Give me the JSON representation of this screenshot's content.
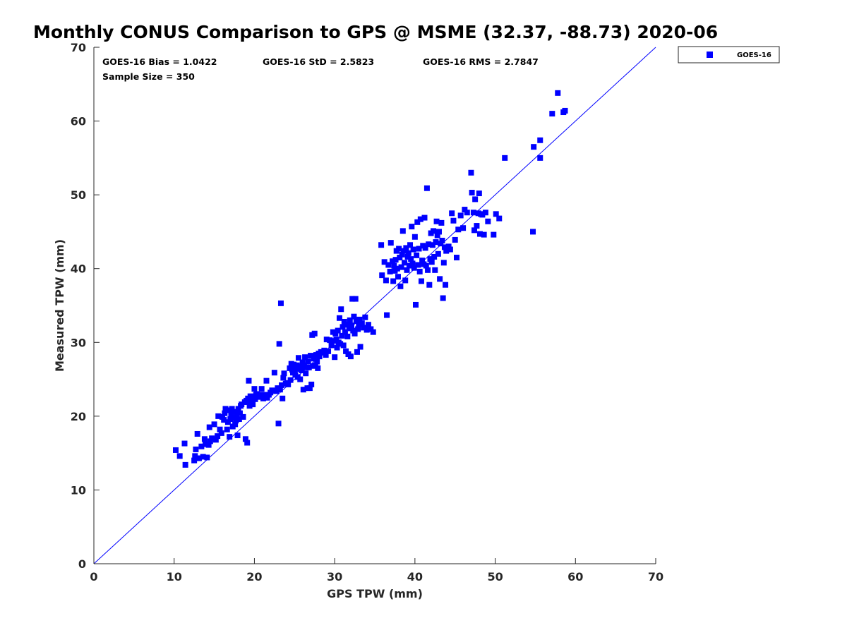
{
  "chart_data": {
    "type": "scatter",
    "title": "Monthly CONUS Comparison to GPS @ MSME (32.37, -88.73) 2020-06",
    "xlabel": "GPS TPW (mm)",
    "ylabel": "Measured TPW (mm)",
    "xlim": [
      0,
      70
    ],
    "ylim": [
      0,
      70
    ],
    "xticks": [
      0,
      10,
      20,
      30,
      40,
      50,
      60,
      70
    ],
    "yticks": [
      0,
      10,
      20,
      30,
      40,
      50,
      60,
      70
    ],
    "grid": false,
    "legend_position": "top-right outside",
    "reference_line": {
      "name": "one-to-one",
      "from": [
        0,
        0
      ],
      "to": [
        70,
        70
      ],
      "color": "#0000ff"
    },
    "annotations": [
      "GOES-16 Bias = 1.0422",
      "GOES-16 StD = 2.5823",
      "GOES-16 RMS = 2.7847",
      "Sample Size = 350"
    ],
    "series": [
      {
        "name": "GOES-16",
        "color": "#0000ff",
        "marker": "square",
        "points": [
          [
            10.2,
            15.4
          ],
          [
            10.7,
            14.6
          ],
          [
            11.3,
            16.3
          ],
          [
            11.4,
            13.4
          ],
          [
            12.5,
            14.0
          ],
          [
            12.6,
            14.6
          ],
          [
            12.7,
            15.5
          ],
          [
            12.9,
            17.6
          ],
          [
            13.1,
            14.3
          ],
          [
            13.4,
            15.9
          ],
          [
            13.6,
            14.5
          ],
          [
            13.8,
            16.9
          ],
          [
            13.9,
            16.2
          ],
          [
            14.1,
            14.4
          ],
          [
            14.3,
            16.1
          ],
          [
            14.4,
            18.5
          ],
          [
            14.5,
            16.6
          ],
          [
            14.7,
            17.0
          ],
          [
            15.0,
            18.9
          ],
          [
            15.2,
            16.8
          ],
          [
            15.4,
            17.3
          ],
          [
            15.5,
            20.0
          ],
          [
            15.7,
            18.2
          ],
          [
            15.9,
            17.7
          ],
          [
            16.0,
            19.9
          ],
          [
            16.2,
            19.5
          ],
          [
            16.3,
            20.4
          ],
          [
            16.4,
            21.0
          ],
          [
            16.6,
            18.2
          ],
          [
            16.7,
            19.2
          ],
          [
            16.8,
            20.8
          ],
          [
            16.9,
            17.2
          ],
          [
            17.0,
            19.6
          ],
          [
            17.1,
            20.2
          ],
          [
            17.2,
            21.0
          ],
          [
            17.3,
            18.6
          ],
          [
            17.4,
            20.6
          ],
          [
            17.5,
            19.8
          ],
          [
            17.6,
            18.9
          ],
          [
            17.7,
            19.4
          ],
          [
            17.8,
            20.3
          ],
          [
            17.9,
            17.4
          ],
          [
            18.0,
            21.0
          ],
          [
            18.1,
            19.6
          ],
          [
            18.2,
            20.4
          ],
          [
            18.3,
            21.4
          ],
          [
            18.4,
            21.6
          ],
          [
            18.6,
            19.9
          ],
          [
            18.8,
            21.9
          ],
          [
            18.9,
            16.9
          ],
          [
            19.0,
            22.1
          ],
          [
            19.1,
            16.4
          ],
          [
            19.2,
            22.4
          ],
          [
            19.3,
            24.8
          ],
          [
            19.4,
            21.4
          ],
          [
            19.5,
            22.7
          ],
          [
            19.6,
            21.8
          ],
          [
            19.7,
            22.2
          ],
          [
            19.8,
            21.6
          ],
          [
            19.9,
            22.6
          ],
          [
            20.0,
            23.7
          ],
          [
            20.1,
            22.3
          ],
          [
            20.2,
            22.9
          ],
          [
            20.3,
            23.0
          ],
          [
            20.5,
            22.6
          ],
          [
            20.7,
            22.9
          ],
          [
            20.9,
            23.7
          ],
          [
            21.1,
            22.4
          ],
          [
            21.3,
            22.9
          ],
          [
            21.5,
            24.8
          ],
          [
            21.6,
            22.5
          ],
          [
            21.8,
            22.9
          ],
          [
            22.0,
            23.2
          ],
          [
            22.2,
            23.5
          ],
          [
            22.5,
            25.9
          ],
          [
            22.7,
            23.4
          ],
          [
            22.9,
            23.8
          ],
          [
            23.0,
            19.0
          ],
          [
            23.1,
            29.8
          ],
          [
            23.2,
            23.6
          ],
          [
            23.3,
            35.3
          ],
          [
            23.4,
            24.2
          ],
          [
            23.5,
            22.4
          ],
          [
            23.6,
            25.2
          ],
          [
            23.7,
            25.8
          ],
          [
            23.9,
            24.4
          ],
          [
            24.1,
            24.5
          ],
          [
            24.2,
            24.3
          ],
          [
            24.4,
            26.5
          ],
          [
            24.5,
            24.9
          ],
          [
            24.6,
            27.1
          ],
          [
            24.7,
            26.3
          ],
          [
            24.8,
            25.9
          ],
          [
            24.9,
            27.0
          ],
          [
            25.0,
            26.2
          ],
          [
            25.1,
            25.6
          ],
          [
            25.2,
            26.8
          ],
          [
            25.3,
            26.9
          ],
          [
            25.4,
            25.3
          ],
          [
            25.5,
            27.9
          ],
          [
            25.6,
            26.4
          ],
          [
            25.7,
            25.0
          ],
          [
            25.8,
            26.7
          ],
          [
            25.9,
            26.2
          ],
          [
            26.0,
            27.3
          ],
          [
            26.1,
            23.6
          ],
          [
            26.2,
            26.9
          ],
          [
            26.3,
            28.0
          ],
          [
            26.4,
            25.8
          ],
          [
            26.5,
            26.6
          ],
          [
            26.6,
            23.8
          ],
          [
            26.7,
            27.4
          ],
          [
            26.8,
            26.6
          ],
          [
            26.9,
            23.8
          ],
          [
            27.0,
            28.2
          ],
          [
            27.1,
            24.3
          ],
          [
            27.2,
            31.0
          ],
          [
            27.3,
            26.8
          ],
          [
            27.4,
            27.8
          ],
          [
            27.5,
            31.2
          ],
          [
            27.6,
            26.9
          ],
          [
            27.7,
            28.3
          ],
          [
            27.8,
            27.4
          ],
          [
            27.9,
            26.5
          ],
          [
            28.0,
            28.5
          ],
          [
            28.1,
            28.1
          ],
          [
            28.3,
            28.7
          ],
          [
            28.5,
            28.6
          ],
          [
            28.7,
            28.9
          ],
          [
            28.9,
            28.3
          ],
          [
            29.0,
            30.4
          ],
          [
            29.2,
            28.8
          ],
          [
            29.4,
            30.3
          ],
          [
            29.6,
            29.6
          ],
          [
            29.8,
            31.4
          ],
          [
            29.9,
            30.2
          ],
          [
            30.0,
            28.0
          ],
          [
            30.1,
            31.2
          ],
          [
            30.2,
            30.4
          ],
          [
            30.3,
            29.3
          ],
          [
            30.4,
            31.6
          ],
          [
            30.5,
            30.0
          ],
          [
            30.6,
            33.3
          ],
          [
            30.7,
            29.8
          ],
          [
            30.8,
            34.5
          ],
          [
            30.9,
            30.9
          ],
          [
            31.0,
            32.1
          ],
          [
            31.1,
            29.6
          ],
          [
            31.2,
            32.8
          ],
          [
            31.3,
            31.4
          ],
          [
            31.4,
            28.8
          ],
          [
            31.5,
            32.4
          ],
          [
            31.6,
            30.8
          ],
          [
            31.7,
            28.4
          ],
          [
            31.8,
            31.9
          ],
          [
            31.9,
            33.0
          ],
          [
            32.0,
            28.1
          ],
          [
            32.1,
            32.3
          ],
          [
            32.2,
            35.9
          ],
          [
            32.3,
            31.6
          ],
          [
            32.4,
            33.5
          ],
          [
            32.5,
            31.2
          ],
          [
            32.6,
            35.9
          ],
          [
            32.7,
            32.9
          ],
          [
            32.8,
            28.7
          ],
          [
            32.9,
            31.8
          ],
          [
            33.0,
            32.5
          ],
          [
            33.1,
            33.1
          ],
          [
            33.2,
            29.4
          ],
          [
            33.4,
            32.6
          ],
          [
            33.6,
            32.0
          ],
          [
            33.8,
            33.4
          ],
          [
            34.0,
            31.7
          ],
          [
            34.2,
            32.4
          ],
          [
            34.5,
            31.8
          ],
          [
            34.8,
            31.4
          ],
          [
            35.8,
            43.2
          ],
          [
            35.9,
            39.1
          ],
          [
            36.2,
            40.9
          ],
          [
            36.4,
            38.4
          ],
          [
            36.5,
            33.7
          ],
          [
            36.7,
            40.5
          ],
          [
            36.9,
            39.6
          ],
          [
            37.0,
            43.5
          ],
          [
            37.2,
            41.0
          ],
          [
            37.3,
            38.3
          ],
          [
            37.4,
            40.4
          ],
          [
            37.5,
            39.7
          ],
          [
            37.6,
            41.2
          ],
          [
            37.7,
            42.4
          ],
          [
            37.8,
            40.0
          ],
          [
            37.9,
            38.9
          ],
          [
            38.0,
            42.7
          ],
          [
            38.1,
            41.5
          ],
          [
            38.2,
            37.6
          ],
          [
            38.3,
            40.2
          ],
          [
            38.4,
            41.9
          ],
          [
            38.5,
            45.1
          ],
          [
            38.6,
            42.4
          ],
          [
            38.7,
            40.8
          ],
          [
            38.8,
            38.4
          ],
          [
            38.9,
            42.8
          ],
          [
            39.0,
            39.8
          ],
          [
            39.1,
            41.6
          ],
          [
            39.2,
            42.1
          ],
          [
            39.3,
            40.4
          ],
          [
            39.4,
            43.2
          ],
          [
            39.5,
            41.3
          ],
          [
            39.6,
            45.7
          ],
          [
            39.7,
            40.7
          ],
          [
            39.8,
            42.6
          ],
          [
            39.9,
            40.1
          ],
          [
            40.0,
            44.3
          ],
          [
            40.1,
            35.1
          ],
          [
            40.2,
            41.8
          ],
          [
            40.3,
            46.3
          ],
          [
            40.4,
            40.5
          ],
          [
            40.5,
            42.7
          ],
          [
            40.6,
            39.6
          ],
          [
            40.7,
            46.7
          ],
          [
            40.8,
            38.3
          ],
          [
            40.9,
            41.1
          ],
          [
            41.0,
            43.1
          ],
          [
            41.1,
            40.6
          ],
          [
            41.2,
            46.9
          ],
          [
            41.3,
            42.8
          ],
          [
            41.4,
            40.4
          ],
          [
            41.5,
            50.9
          ],
          [
            41.6,
            39.8
          ],
          [
            41.7,
            43.3
          ],
          [
            41.8,
            37.8
          ],
          [
            41.9,
            41.3
          ],
          [
            42.0,
            44.8
          ],
          [
            42.1,
            40.9
          ],
          [
            42.2,
            43.2
          ],
          [
            42.3,
            45.1
          ],
          [
            42.4,
            41.6
          ],
          [
            42.5,
            39.8
          ],
          [
            42.6,
            43.6
          ],
          [
            42.7,
            46.4
          ],
          [
            42.8,
            44.5
          ],
          [
            42.9,
            42.0
          ],
          [
            43.0,
            45.0
          ],
          [
            43.1,
            38.6
          ],
          [
            43.2,
            43.4
          ],
          [
            43.3,
            46.2
          ],
          [
            43.4,
            43.8
          ],
          [
            43.5,
            36.0
          ],
          [
            43.6,
            40.8
          ],
          [
            43.7,
            42.9
          ],
          [
            43.8,
            37.8
          ],
          [
            43.9,
            42.4
          ],
          [
            44.0,
            42.6
          ],
          [
            44.2,
            43.0
          ],
          [
            44.4,
            42.6
          ],
          [
            44.6,
            47.5
          ],
          [
            44.8,
            46.5
          ],
          [
            45.0,
            43.9
          ],
          [
            45.2,
            41.5
          ],
          [
            45.4,
            45.3
          ],
          [
            45.7,
            47.2
          ],
          [
            46.0,
            45.5
          ],
          [
            46.2,
            48.0
          ],
          [
            46.5,
            47.6
          ],
          [
            47.0,
            53.0
          ],
          [
            47.1,
            50.3
          ],
          [
            47.3,
            47.6
          ],
          [
            47.4,
            45.2
          ],
          [
            47.5,
            49.4
          ],
          [
            47.7,
            45.8
          ],
          [
            47.9,
            47.5
          ],
          [
            48.0,
            50.2
          ],
          [
            48.1,
            44.7
          ],
          [
            48.2,
            47.4
          ],
          [
            48.4,
            47.3
          ],
          [
            48.6,
            44.6
          ],
          [
            48.8,
            47.6
          ],
          [
            49.1,
            46.4
          ],
          [
            49.8,
            44.6
          ],
          [
            50.1,
            47.4
          ],
          [
            50.5,
            46.8
          ],
          [
            51.2,
            55.0
          ],
          [
            54.7,
            45.0
          ],
          [
            54.8,
            56.5
          ],
          [
            55.6,
            57.4
          ],
          [
            55.6,
            55.0
          ],
          [
            57.1,
            61.0
          ],
          [
            57.8,
            63.8
          ],
          [
            58.5,
            61.2
          ],
          [
            58.7,
            61.4
          ]
        ]
      }
    ]
  }
}
